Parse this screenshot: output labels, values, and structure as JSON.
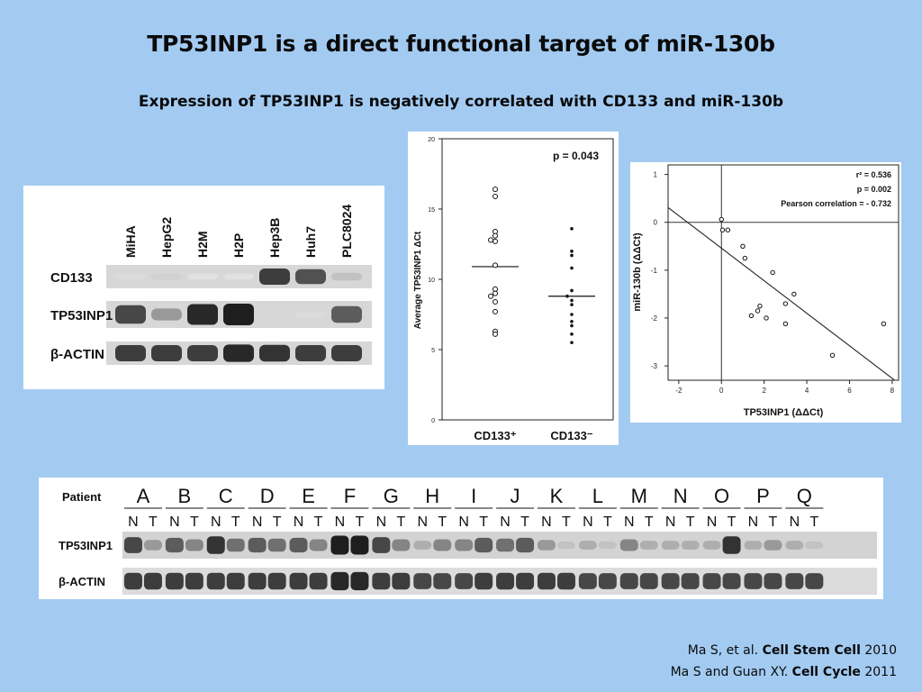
{
  "title": "TP53INP1 is a direct functional target of miR-130b",
  "subtitle": "Expression of TP53INP1 is negatively correlated with CD133 and miR-130b",
  "western_blot_cell_lines": {
    "cell_lines": [
      "MiHA",
      "HepG2",
      "H2M",
      "H2P",
      "Hep3B",
      "Huh7",
      "PLC8024"
    ],
    "row_labels": [
      "CD133",
      "TP53INP1",
      "β-ACTIN"
    ],
    "band_intensity": {
      "CD133": [
        0.08,
        0.12,
        0.05,
        0.05,
        0.85,
        0.75,
        0.2
      ],
      "TP53INP1": [
        0.8,
        0.4,
        0.95,
        1.0,
        0.1,
        0.08,
        0.7
      ],
      "β-ACTIN": [
        0.85,
        0.85,
        0.85,
        0.95,
        0.9,
        0.85,
        0.85
      ]
    }
  },
  "chart_data": [
    {
      "type": "scatter",
      "ylabel": "Average TP53INP1 ΔCt",
      "ylim": [
        0,
        20
      ],
      "yticks": [
        0,
        5,
        10,
        15,
        20
      ],
      "categories": [
        "CD133⁺",
        "CD133⁻"
      ],
      "annotation": "p = 0.043",
      "series": [
        {
          "name": "CD133⁺",
          "marker": "open-circle",
          "values": [
            16.4,
            15.9,
            13.4,
            13.1,
            12.8,
            12.7,
            11.0,
            9.3,
            9.0,
            8.8,
            8.4,
            7.7,
            6.3,
            6.1
          ],
          "mean": 10.9
        },
        {
          "name": "CD133⁻",
          "marker": "filled-dot",
          "values": [
            13.6,
            12.0,
            11.7,
            10.8,
            9.2,
            8.8,
            8.5,
            8.2,
            7.5,
            7.0,
            6.7,
            6.1,
            5.5
          ],
          "mean": 8.8
        }
      ]
    },
    {
      "type": "scatter",
      "xlabel": "TP53INP1 (ΔΔCt)",
      "ylabel": "miR-130b (ΔΔCt)",
      "xlim": [
        -2.5,
        8.3
      ],
      "ylim": [
        -3.3,
        1.2
      ],
      "xticks": [
        -2,
        0,
        2,
        4,
        6,
        8
      ],
      "yticks": [
        1,
        0,
        -1,
        -2,
        -3
      ],
      "annotations": [
        "r² = 0.536",
        "p = 0.002",
        "Pearson correlation = - 0.732"
      ],
      "points": [
        [
          0.0,
          0.06
        ],
        [
          0.05,
          -0.16
        ],
        [
          0.3,
          -0.16
        ],
        [
          1.0,
          -0.5
        ],
        [
          1.1,
          -0.75
        ],
        [
          2.4,
          -1.05
        ],
        [
          3.4,
          -1.5
        ],
        [
          3.0,
          -1.7
        ],
        [
          1.8,
          -1.75
        ],
        [
          1.7,
          -1.85
        ],
        [
          1.4,
          -1.95
        ],
        [
          2.1,
          -2.0
        ],
        [
          3.0,
          -2.12
        ],
        [
          7.6,
          -2.12
        ],
        [
          5.2,
          -2.78
        ]
      ],
      "fit": {
        "slope": -0.34,
        "intercept": -0.54
      }
    }
  ],
  "western_blot_patients": {
    "header_label": "Patient",
    "patients": [
      "A",
      "B",
      "C",
      "D",
      "E",
      "F",
      "G",
      "H",
      "I",
      "J",
      "K",
      "L",
      "M",
      "N",
      "O",
      "P",
      "Q"
    ],
    "sub_labels": [
      "N",
      "T"
    ],
    "row_labels": [
      "TP53INP1",
      "β-ACTIN"
    ],
    "band_intensity": {
      "TP53INP1": [
        0.8,
        0.4,
        0.7,
        0.5,
        0.9,
        0.6,
        0.7,
        0.6,
        0.7,
        0.5,
        1.0,
        1.0,
        0.8,
        0.5,
        0.3,
        0.5,
        0.5,
        0.7,
        0.6,
        0.7,
        0.4,
        0.2,
        0.3,
        0.2,
        0.5,
        0.3,
        0.3,
        0.3,
        0.3,
        0.9,
        0.3,
        0.4,
        0.3,
        0.2
      ],
      "β-ACTIN": [
        0.85,
        0.85,
        0.85,
        0.85,
        0.85,
        0.85,
        0.85,
        0.85,
        0.85,
        0.85,
        0.95,
        0.95,
        0.85,
        0.85,
        0.8,
        0.8,
        0.8,
        0.85,
        0.85,
        0.85,
        0.85,
        0.85,
        0.8,
        0.8,
        0.8,
        0.8,
        0.8,
        0.8,
        0.8,
        0.8,
        0.8,
        0.8,
        0.8,
        0.8
      ]
    }
  },
  "references": [
    {
      "prefix": "Ma S, et al. ",
      "journal": "Cell Stem Cell",
      "year": " 2010"
    },
    {
      "prefix": "Ma S and Guan XY. ",
      "journal": "Cell Cycle",
      "year": " 2011"
    }
  ]
}
